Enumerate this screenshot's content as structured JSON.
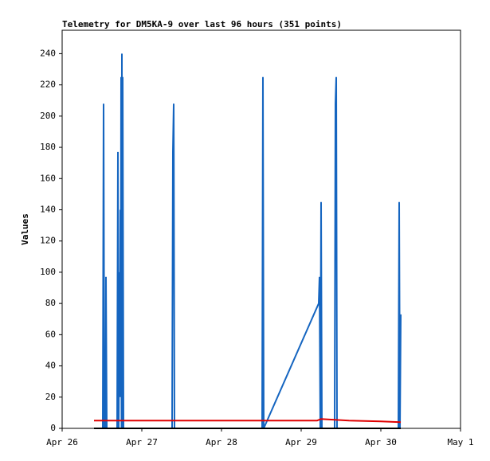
{
  "chart_data": {
    "type": "line",
    "title": "Telemetry for DM5KA-9 over last 96 hours (351 points)",
    "y_label": "Values",
    "xlim": [
      0,
      5
    ],
    "xticks": [
      {
        "value": 0,
        "label": "Apr 26"
      },
      {
        "value": 1,
        "label": "Apr 27"
      },
      {
        "value": 2,
        "label": "Apr 28"
      },
      {
        "value": 3,
        "label": "Apr 29"
      },
      {
        "value": 4,
        "label": "Apr 30"
      },
      {
        "value": 5,
        "label": "May 1"
      }
    ],
    "ylim": [
      0,
      255
    ],
    "yticks": [
      0,
      20,
      40,
      60,
      80,
      100,
      120,
      140,
      160,
      180,
      200,
      220,
      240
    ],
    "grid": false,
    "series": [
      {
        "color": "#1565c0",
        "x": [
          0.4,
          0.51,
          0.52,
          0.53,
          0.545,
          0.55,
          0.56,
          0.69,
          0.7,
          0.71,
          0.72,
          0.725,
          0.73,
          0.735,
          0.74,
          0.745,
          0.75,
          0.755,
          0.76,
          0.77,
          1.38,
          1.39,
          1.4,
          1.41,
          2.51,
          2.52,
          2.53,
          3.22,
          3.23,
          3.24,
          3.25,
          3.26,
          3.42,
          3.43,
          3.44,
          3.45,
          4.22,
          4.23,
          4.24,
          4.25
        ],
        "values": [
          0,
          0,
          208,
          0,
          0,
          97,
          0,
          0,
          177,
          0,
          100,
          20,
          140,
          60,
          225,
          0,
          240,
          0,
          225,
          0,
          0,
          177,
          208,
          0,
          0,
          225,
          0,
          80,
          97,
          0,
          145,
          0,
          0,
          208,
          225,
          0,
          0,
          145,
          0,
          73
        ]
      },
      {
        "color": "#e00000",
        "x": [
          0.4,
          3.2,
          3.25,
          3.6,
          4.0,
          4.25
        ],
        "values": [
          5,
          5,
          6,
          5,
          4.5,
          4
        ]
      },
      {
        "color": "#000000",
        "x": [
          0.4,
          4.25
        ],
        "values": [
          0,
          0
        ]
      }
    ]
  }
}
